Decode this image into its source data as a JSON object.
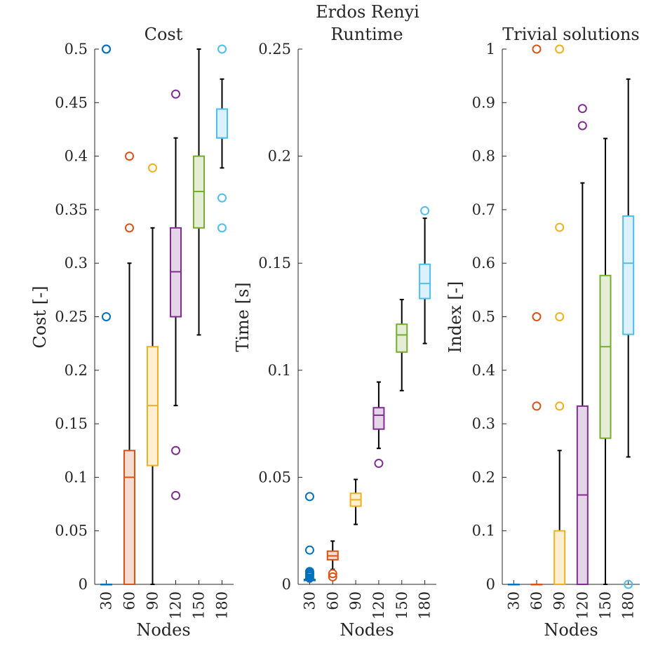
{
  "figure": {
    "suptitle": "Erdos Renyi"
  },
  "series_colors": [
    "#0072BD",
    "#D95319",
    "#EDB120",
    "#7E2F8E",
    "#77AC30",
    "#4DBEEE"
  ],
  "series_fills": [
    "#cce3f2",
    "#f7ddd1",
    "#fcefd2",
    "#e5d5e8",
    "#e4eed6",
    "#dbf2fc"
  ],
  "chart_data": [
    {
      "type": "box",
      "title": "Cost",
      "xlabel": "Nodes",
      "ylabel": "Cost [-]",
      "ylim": [
        0,
        0.5
      ],
      "yticks": [
        0,
        0.05,
        0.1,
        0.15,
        0.2,
        0.25,
        0.3,
        0.35,
        0.4,
        0.45,
        0.5
      ],
      "ytick_labels": [
        "0",
        "0.05",
        "0.1",
        "0.15",
        "0.2",
        "0.25",
        "0.3",
        "0.35",
        "0.4",
        "0.45",
        "0.5"
      ],
      "categories": [
        "30",
        "60",
        "90",
        "120",
        "150",
        "180"
      ],
      "boxes": [
        {
          "q1": 0,
          "median": 0,
          "q3": 0,
          "whisker_low": 0,
          "whisker_high": 0,
          "outliers": [
            0.25,
            0.5,
            0.5
          ]
        },
        {
          "q1": 0,
          "median": 0.1,
          "q3": 0.125,
          "whisker_low": 0,
          "whisker_high": 0.3,
          "outliers": [
            0.333,
            0.4
          ]
        },
        {
          "q1": 0.111,
          "median": 0.167,
          "q3": 0.222,
          "whisker_low": 0,
          "whisker_high": 0.333,
          "outliers": [
            0.389
          ]
        },
        {
          "q1": 0.25,
          "median": 0.292,
          "q3": 0.333,
          "whisker_low": 0.167,
          "whisker_high": 0.417,
          "outliers": [
            0.083,
            0.125,
            0.458
          ]
        },
        {
          "q1": 0.333,
          "median": 0.367,
          "q3": 0.4,
          "whisker_low": 0.233,
          "whisker_high": 0.5,
          "outliers": []
        },
        {
          "q1": 0.417,
          "median": 0.417,
          "q3": 0.444,
          "whisker_low": 0.389,
          "whisker_high": 0.472,
          "outliers": [
            0.333,
            0.361,
            0.5
          ]
        }
      ]
    },
    {
      "type": "box",
      "title": "Runtime",
      "xlabel": "Nodes",
      "ylabel": "Time [s]",
      "ylim": [
        0,
        0.25
      ],
      "yticks": [
        0,
        0.05,
        0.1,
        0.15,
        0.2,
        0.25
      ],
      "ytick_labels": [
        "0",
        "0.05",
        "0.1",
        "0.15",
        "0.2",
        "0.25"
      ],
      "categories": [
        "30",
        "60",
        "90",
        "120",
        "150",
        "180"
      ],
      "boxes": [
        {
          "q1": 0.0018,
          "median": 0.002,
          "q3": 0.0023,
          "whisker_low": 0.0012,
          "whisker_high": 0.0028,
          "outliers": [
            0.003,
            0.0038,
            0.0045,
            0.005,
            0.0056,
            0.006,
            0.016,
            0.041
          ]
        },
        {
          "q1": 0.0115,
          "median": 0.0133,
          "q3": 0.0155,
          "whisker_low": 0.007,
          "whisker_high": 0.0202,
          "outliers": [
            0.0035,
            0.005
          ]
        },
        {
          "q1": 0.0365,
          "median": 0.0395,
          "q3": 0.0425,
          "whisker_low": 0.028,
          "whisker_high": 0.049,
          "outliers": []
        },
        {
          "q1": 0.0725,
          "median": 0.079,
          "q3": 0.0825,
          "whisker_low": 0.0635,
          "whisker_high": 0.0945,
          "outliers": [
            0.0565
          ]
        },
        {
          "q1": 0.1085,
          "median": 0.1165,
          "q3": 0.1215,
          "whisker_low": 0.0905,
          "whisker_high": 0.133,
          "outliers": []
        },
        {
          "q1": 0.1335,
          "median": 0.1405,
          "q3": 0.1495,
          "whisker_low": 0.1125,
          "whisker_high": 0.171,
          "outliers": [
            0.1745
          ]
        }
      ]
    },
    {
      "type": "box",
      "title": "Trivial solutions",
      "xlabel": "Nodes",
      "ylabel": "Index [-]",
      "ylim": [
        0,
        1
      ],
      "yticks": [
        0,
        0.1,
        0.2,
        0.3,
        0.4,
        0.5,
        0.6,
        0.7,
        0.8,
        0.9,
        1
      ],
      "ytick_labels": [
        "0",
        "0.1",
        "0.2",
        "0.3",
        "0.4",
        "0.5",
        "0.6",
        "0.7",
        "0.8",
        "0.9",
        "1"
      ],
      "categories": [
        "30",
        "60",
        "90",
        "120",
        "150",
        "180"
      ],
      "boxes": [
        {
          "q1": 0,
          "median": 0,
          "q3": 0,
          "whisker_low": 0,
          "whisker_high": 0,
          "outliers": []
        },
        {
          "q1": 0,
          "median": 0,
          "q3": 0,
          "whisker_low": 0,
          "whisker_high": 0,
          "outliers": [
            0.333,
            0.5,
            1
          ]
        },
        {
          "q1": 0,
          "median": 0,
          "q3": 0.1,
          "whisker_low": 0,
          "whisker_high": 0.25,
          "outliers": [
            0.333,
            0.5,
            0.667,
            1
          ]
        },
        {
          "q1": 0,
          "median": 0.167,
          "q3": 0.333,
          "whisker_low": 0,
          "whisker_high": 0.75,
          "outliers": [
            0.857,
            0.889
          ]
        },
        {
          "q1": 0.273,
          "median": 0.444,
          "q3": 0.577,
          "whisker_low": 0,
          "whisker_high": 0.833,
          "outliers": []
        },
        {
          "q1": 0.467,
          "median": 0.6,
          "q3": 0.688,
          "whisker_low": 0.238,
          "whisker_high": 0.944,
          "outliers": [
            0
          ]
        }
      ]
    }
  ]
}
